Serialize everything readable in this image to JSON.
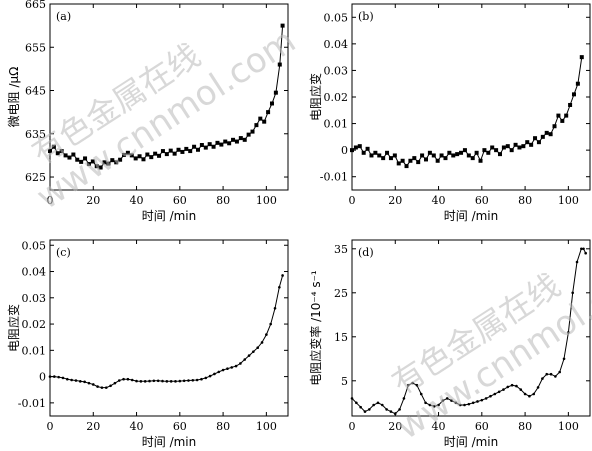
{
  "chart_data": [
    {
      "type": "line",
      "panel_label": "(a)",
      "xlabel": "时间 /min",
      "ylabel": "微电阻 /μΩ",
      "xlim": [
        0,
        110
      ],
      "ylim": [
        622,
        665
      ],
      "xticks": [
        0,
        20,
        40,
        60,
        80,
        100
      ],
      "yticks": [
        625,
        635,
        645,
        655,
        665
      ],
      "ytick_labels": [
        "625",
        "635",
        "645",
        "655",
        "665"
      ],
      "marker": "square",
      "series": [
        {
          "x": [
            0,
            1.8,
            3.6,
            5.4,
            7.2,
            9,
            10.8,
            12.6,
            14.4,
            16.2,
            18,
            19.8,
            21.6,
            23.4,
            25.2,
            27,
            28.8,
            30.6,
            32.4,
            34.2,
            36,
            37.8,
            39.6,
            41.4,
            43.2,
            45,
            46.8,
            48.6,
            50.4,
            52.2,
            54,
            55.8,
            57.6,
            59.4,
            61.2,
            63,
            64.8,
            66.6,
            68.4,
            70.2,
            72,
            73.8,
            75.6,
            77.4,
            79.2,
            81,
            82.8,
            84.6,
            86.4,
            88.2,
            90,
            91.8,
            93.6,
            95.4,
            97.2,
            99,
            100.8,
            102.6,
            104.4,
            106.2,
            107.5
          ],
          "y": [
            631,
            632,
            630.5,
            631,
            630,
            629.5,
            630.2,
            629,
            628.5,
            629.3,
            628,
            628.6,
            627.5,
            627.2,
            628.4,
            628.1,
            628.9,
            628.4,
            629,
            630.1,
            630.6,
            630,
            629.3,
            629.8,
            629.1,
            630.2,
            629.6,
            630.4,
            629.9,
            631,
            630.3,
            631.1,
            630.4,
            631.3,
            630.8,
            631.5,
            631,
            632,
            631.3,
            632.4,
            631.8,
            632.6,
            632,
            632.9,
            632.5,
            633.2,
            632.8,
            633.6,
            633.2,
            634,
            633.6,
            634.8,
            635.5,
            637,
            638.5,
            637.8,
            640,
            642,
            644.5,
            651,
            660
          ]
        }
      ]
    },
    {
      "type": "line",
      "panel_label": "(b)",
      "xlabel": "时间 /min",
      "ylabel": "电阻应变",
      "xlim": [
        0,
        110
      ],
      "ylim": [
        -0.015,
        0.055
      ],
      "xticks": [
        0,
        20,
        40,
        60,
        80,
        100
      ],
      "yticks": [
        -0.01,
        0,
        0.01,
        0.02,
        0.03,
        0.04,
        0.05
      ],
      "ytick_labels": [
        "-0.01",
        "0",
        "0.01",
        "0.02",
        "0.03",
        "0.04",
        "0.05"
      ],
      "marker": "square",
      "series": [
        {
          "x": [
            0,
            1.8,
            3.6,
            5.4,
            7.2,
            9,
            10.8,
            12.6,
            14.4,
            16.2,
            18,
            19.8,
            21.6,
            23.4,
            25.2,
            27,
            28.8,
            30.6,
            32.4,
            34.2,
            36,
            37.8,
            39.6,
            41.4,
            43.2,
            45,
            46.8,
            48.6,
            50.4,
            52.2,
            54,
            55.8,
            57.6,
            59.4,
            61.2,
            63,
            64.8,
            66.6,
            68.4,
            70.2,
            72,
            73.8,
            75.6,
            77.4,
            79.2,
            81,
            82.8,
            84.6,
            86.4,
            88.2,
            90,
            91.8,
            93.6,
            95.4,
            97.2,
            99,
            100.8,
            102.6,
            104.4,
            106.2
          ],
          "y": [
            0,
            0.001,
            0.0015,
            -0.001,
            0.0005,
            -0.002,
            -0.001,
            -0.002,
            -0.003,
            -0.001,
            -0.003,
            -0.002,
            -0.005,
            -0.004,
            -0.006,
            -0.004,
            -0.003,
            -0.0045,
            -0.002,
            -0.0035,
            -0.001,
            -0.002,
            -0.004,
            -0.002,
            -0.003,
            -0.001,
            -0.002,
            -0.0015,
            -0.001,
            0,
            -0.002,
            -0.003,
            -0.001,
            -0.004,
            0,
            -0.001,
            0.001,
            0,
            -0.0015,
            0.001,
            0.0015,
            0,
            0.002,
            0.001,
            0.0015,
            0.003,
            0.002,
            0.0045,
            0.003,
            0.005,
            0.0065,
            0.006,
            0.009,
            0.013,
            0.011,
            0.013,
            0.017,
            0.021,
            0.025,
            0.035
          ]
        }
      ]
    },
    {
      "type": "line",
      "panel_label": "(c)",
      "xlabel": "时间 /min",
      "ylabel": "电阻应变",
      "xlim": [
        0,
        110
      ],
      "ylim": [
        -0.015,
        0.052
      ],
      "xticks": [
        0,
        20,
        40,
        60,
        80,
        100
      ],
      "yticks": [
        -0.01,
        0,
        0.01,
        0.02,
        0.03,
        0.04,
        0.05
      ],
      "ytick_labels": [
        "-0.01",
        "0",
        "0.01",
        "0.02",
        "0.03",
        "0.04",
        "0.05"
      ],
      "marker": "dot",
      "series": [
        {
          "x": [
            0,
            2,
            4,
            6,
            8,
            10,
            12,
            14,
            16,
            18,
            20,
            22,
            24,
            26,
            28,
            30,
            32,
            34,
            36,
            38,
            40,
            42,
            44,
            46,
            48,
            50,
            52,
            54,
            56,
            58,
            60,
            62,
            64,
            66,
            68,
            70,
            72,
            74,
            76,
            78,
            80,
            82,
            84,
            86,
            88,
            90,
            92,
            94,
            96,
            98,
            100,
            102,
            104,
            106,
            107.5
          ],
          "y": [
            0,
            0,
            -0.0002,
            -0.0005,
            -0.001,
            -0.0013,
            -0.0015,
            -0.0018,
            -0.002,
            -0.0025,
            -0.003,
            -0.0038,
            -0.0042,
            -0.0042,
            -0.0035,
            -0.0025,
            -0.0015,
            -0.001,
            -0.001,
            -0.0013,
            -0.0017,
            -0.0018,
            -0.0018,
            -0.0017,
            -0.0016,
            -0.0016,
            -0.0017,
            -0.0018,
            -0.0018,
            -0.0018,
            -0.0017,
            -0.0016,
            -0.0015,
            -0.0014,
            -0.0013,
            -0.001,
            -0.0005,
            0.0002,
            0.001,
            0.0018,
            0.0025,
            0.003,
            0.0035,
            0.004,
            0.005,
            0.0065,
            0.008,
            0.0095,
            0.011,
            0.013,
            0.016,
            0.02,
            0.026,
            0.034,
            0.0385
          ]
        }
      ]
    },
    {
      "type": "line",
      "panel_label": "(d)",
      "xlabel": "时间 /min",
      "ylabel": "电阻应变率 /10⁻⁴ s⁻¹",
      "xlim": [
        0,
        110
      ],
      "ylim": [
        -3,
        37
      ],
      "xticks": [
        0,
        20,
        40,
        60,
        80,
        100
      ],
      "yticks": [
        5,
        15,
        25,
        35
      ],
      "ytick_labels": [
        "5",
        "15",
        "25",
        "35"
      ],
      "marker": "dot",
      "series": [
        {
          "x": [
            0,
            2,
            4,
            6,
            8,
            10,
            12,
            14,
            16,
            18,
            20,
            22,
            24,
            26,
            28,
            30,
            32,
            34,
            36,
            38,
            40,
            42,
            44,
            46,
            48,
            50,
            52,
            54,
            56,
            58,
            60,
            62,
            64,
            66,
            68,
            70,
            72,
            74,
            76,
            78,
            80,
            82,
            84,
            86,
            88,
            90,
            92,
            94,
            96,
            98,
            100,
            102,
            104,
            106,
            107,
            108
          ],
          "y": [
            1,
            0,
            -1,
            -2,
            -1.5,
            -0.5,
            0,
            -0.5,
            -1.5,
            -2,
            -2.5,
            -1.5,
            1,
            4,
            4.5,
            4,
            2,
            0,
            -0.5,
            -0.8,
            -0.5,
            0.5,
            1,
            0.5,
            0,
            -0.5,
            -0.5,
            -0.3,
            0,
            0.3,
            0.6,
            1,
            1.5,
            2,
            2.5,
            3,
            3.6,
            4,
            3.8,
            3,
            2,
            1.5,
            2,
            3.5,
            5.5,
            6.5,
            6.5,
            6,
            7,
            10,
            16,
            25,
            32,
            35,
            35,
            34
          ]
        }
      ]
    }
  ],
  "watermark": {
    "line1": "有色金属在线",
    "line2": "www.cnnmol.com"
  }
}
